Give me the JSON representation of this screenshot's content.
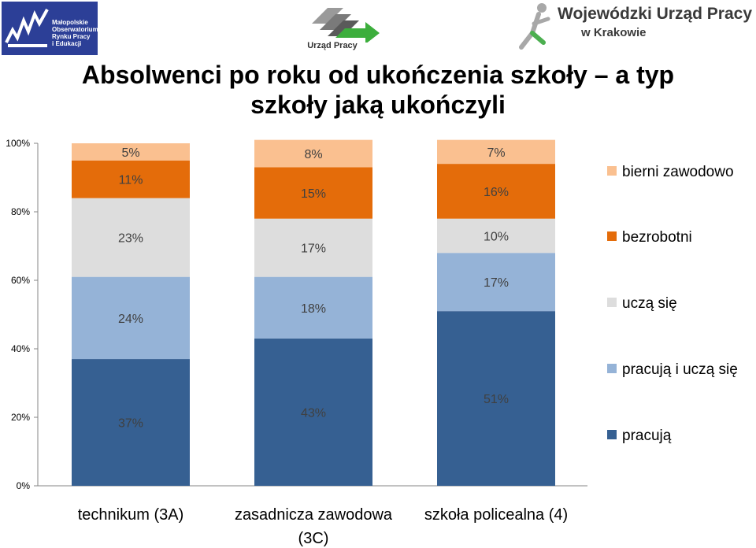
{
  "header": {
    "left_logo_text": "Małopolskie\nObserwatorium\nRynku Pracy\ni Edukacji",
    "center_logo_text": "Urząd Pracy",
    "right_logo_line1": "Wojewódzki Urząd Pracy",
    "right_logo_line2": "w Krakowie"
  },
  "chart_data": {
    "type": "bar",
    "stacked": true,
    "title_line1": "Absolwenci po roku od ukończenia szkoły – a typ",
    "title_line2": "szkoły jaką ukończyli",
    "categories": [
      [
        "technikum (3A)"
      ],
      [
        "zasadnicza zawodowa",
        "(3C)"
      ],
      [
        "szkoła policealna (4)"
      ]
    ],
    "series": [
      {
        "name": "pracują",
        "values": [
          37,
          43,
          51
        ],
        "labels": [
          "37%",
          "43%",
          "51%"
        ],
        "color": "#366092"
      },
      {
        "name": "pracują i uczą się",
        "values": [
          24,
          18,
          17
        ],
        "labels": [
          "24%",
          "18%",
          "17%"
        ],
        "color": "#95b3d7"
      },
      {
        "name": "uczą się",
        "values": [
          23,
          17,
          10
        ],
        "labels": [
          "23%",
          "17%",
          "10%"
        ],
        "color": "#dddddd"
      },
      {
        "name": "bezrobotni",
        "values": [
          11,
          15,
          16
        ],
        "labels": [
          "11%",
          "15%",
          "16%"
        ],
        "color": "#e46c0a"
      },
      {
        "name": "bierni zawodowo",
        "values": [
          5,
          8,
          7
        ],
        "labels": [
          "5%",
          "8%",
          "7%"
        ],
        "color": "#fac090"
      }
    ],
    "y_ticks": [
      "0%",
      "20%",
      "40%",
      "60%",
      "80%",
      "100%"
    ],
    "ylim": [
      0,
      100
    ],
    "legend_position": "right",
    "grid": false
  }
}
